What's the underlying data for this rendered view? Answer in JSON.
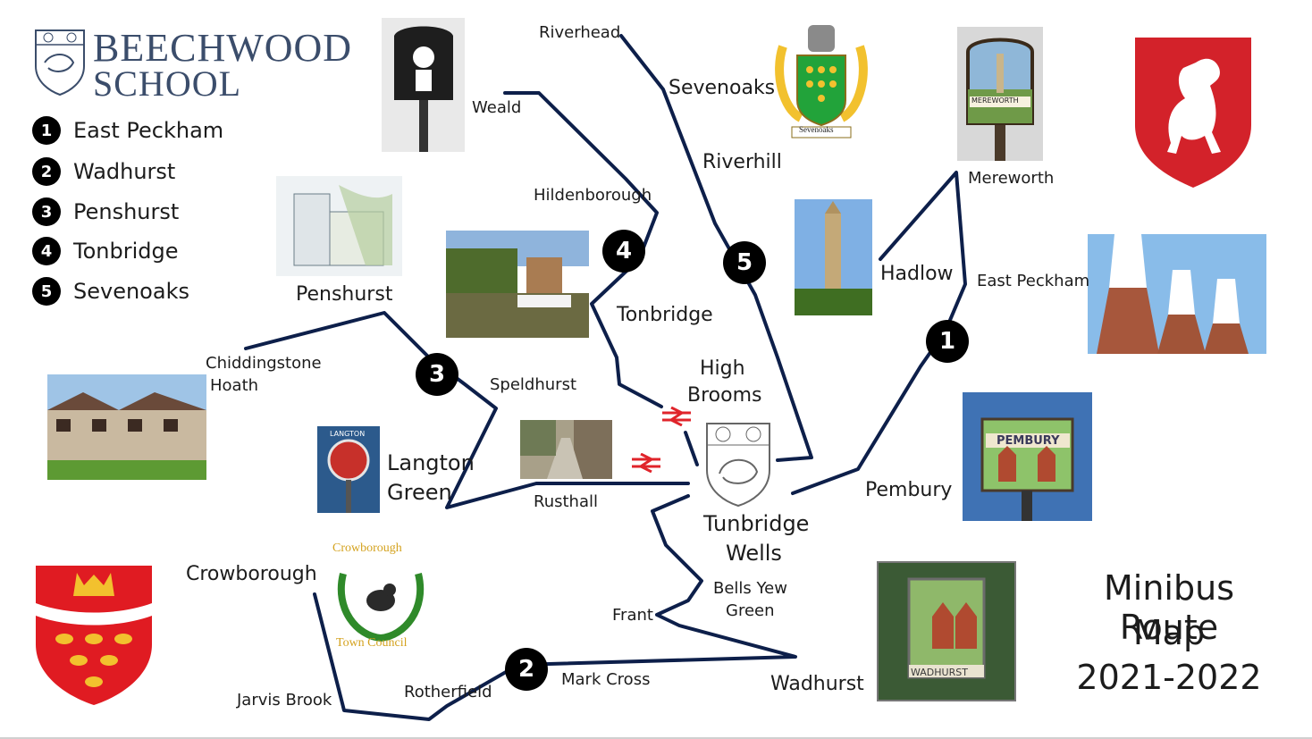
{
  "school": {
    "name_line1": "BEECHWOOD",
    "name_line2": "SCHOOL"
  },
  "legend": [
    {
      "num": "1",
      "label": "East Peckham"
    },
    {
      "num": "2",
      "label": "Wadhurst"
    },
    {
      "num": "3",
      "label": "Penshurst"
    },
    {
      "num": "4",
      "label": "Tonbridge"
    },
    {
      "num": "5",
      "label": "Sevenoaks"
    }
  ],
  "title": {
    "line1": "Minibus Route",
    "line2": "Map",
    "line3": "2021-2022"
  },
  "places": {
    "riverhead": "Riverhead",
    "sevenoaks": "Sevenoaks",
    "riverhill": "Riverhill",
    "weald": "Weald",
    "hildenborough": "Hildenborough",
    "tonbridge": "Tonbridge",
    "high_brooms_1": "High",
    "high_brooms_2": "Brooms",
    "penshurst": "Penshurst",
    "chiddingstone_1": "Chiddingstone",
    "chiddingstone_2": "Hoath",
    "speldhurst": "Speldhurst",
    "langton_1": "Langton",
    "langton_2": "Green",
    "rusthall": "Rusthall",
    "tunbridge_1": "Tunbridge",
    "tunbridge_2": "Wells",
    "mereworth": "Mereworth",
    "hadlow": "Hadlow",
    "east_peckham": "East Peckham",
    "pembury": "Pembury",
    "crowborough": "Crowborough",
    "bells_yew_1": "Bells Yew",
    "bells_yew_2": "Green",
    "frant": "Frant",
    "jarvis_brook": "Jarvis Brook",
    "rotherfield": "Rotherfield",
    "mark_cross": "Mark Cross",
    "wadhurst": "Wadhurst"
  },
  "route_markers": {
    "r1": "1",
    "r2": "2",
    "r3": "3",
    "r4": "4",
    "r5": "5"
  },
  "sign_text": {
    "mereworth": "MEREWORTH",
    "pembury": "PEMBURY",
    "wadhurst": "WADHURST",
    "sevenoaks": "Sevenoaks",
    "crowborough_1": "Crowborough",
    "crowborough_2": "Town Council",
    "langton": "LANGTON"
  },
  "colors": {
    "route": "#0d1f4a",
    "rail": "#e0242b",
    "kent_red": "#d3222a",
    "sussex_red": "#e01b22",
    "gold": "#f2c12e",
    "school_blue": "#3b4d6b"
  },
  "icons": [
    "rail-icon",
    "school-crest",
    "kent-horse-shield",
    "sussex-martlets-shield",
    "sevenoaks-crest",
    "crowborough-emblem"
  ]
}
